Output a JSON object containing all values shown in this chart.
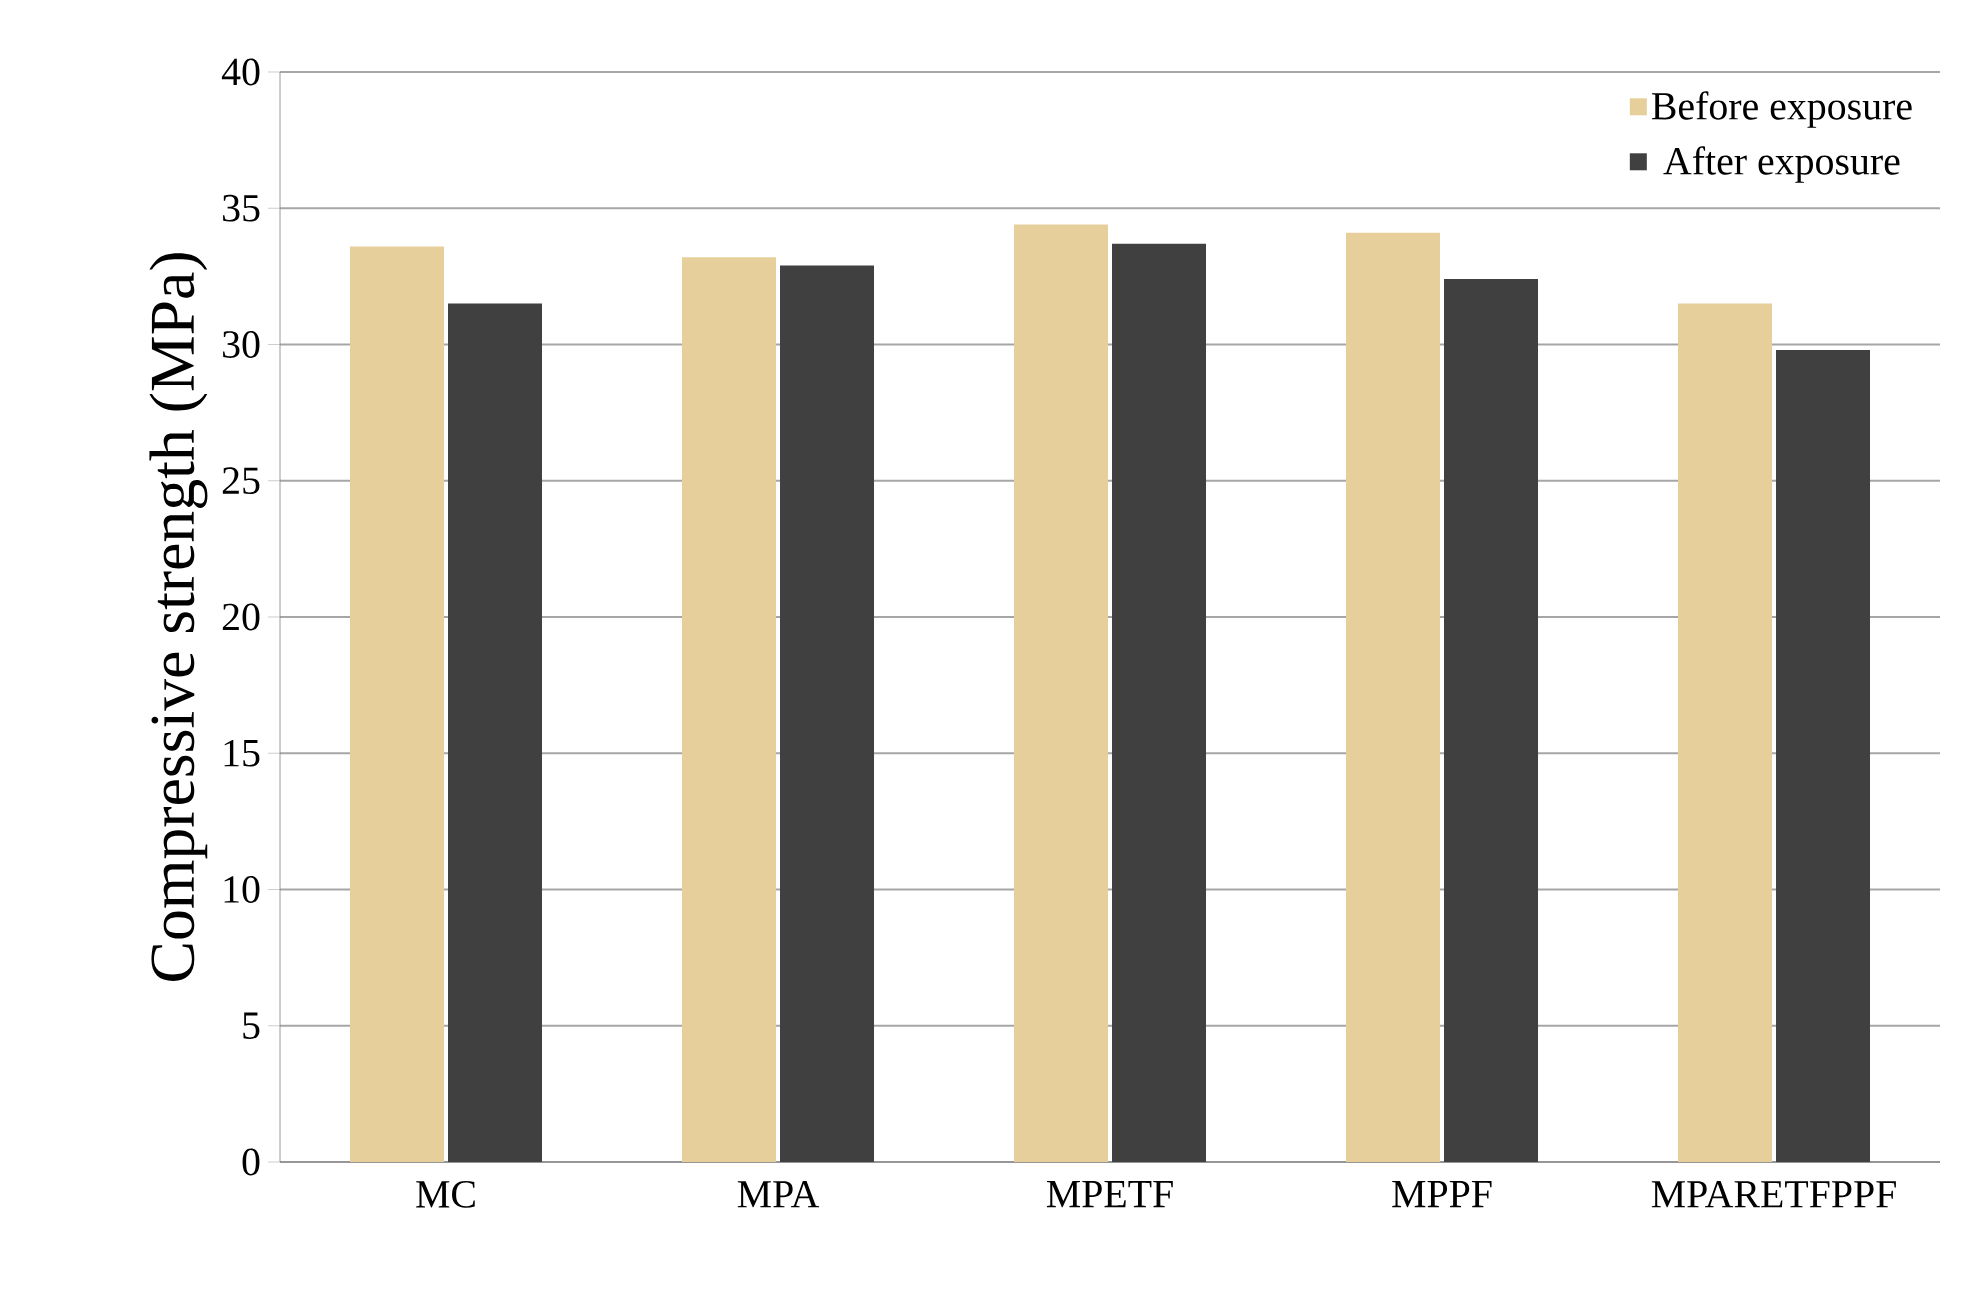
{
  "chart_data": {
    "type": "bar",
    "ylabel": "Compressive strength (MPa)",
    "categories": [
      "MC",
      "MPA",
      "MPETF",
      "MPPF",
      "MPARETFPPF"
    ],
    "series": [
      {
        "name": "Before exposure",
        "color": "#e6cf9a",
        "values": [
          33.6,
          33.2,
          34.4,
          34.1,
          31.5
        ]
      },
      {
        "name": "After exposure",
        "color": "#404040",
        "values": [
          31.5,
          32.9,
          33.7,
          32.4,
          29.8
        ]
      }
    ],
    "ylim": [
      0,
      40
    ],
    "yticks": [
      0,
      5,
      10,
      15,
      20,
      25,
      30,
      35,
      40
    ],
    "grid": "y",
    "legend": "top right"
  }
}
